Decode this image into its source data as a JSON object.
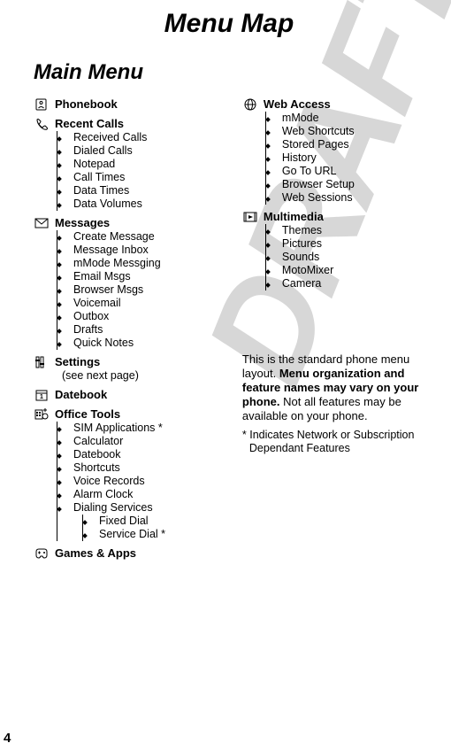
{
  "watermark": "DRAFT",
  "title": "Menu Map",
  "subtitle": "Main Menu",
  "pageNumber": "4",
  "left": [
    {
      "icon": "phonebook",
      "label": "Phonebook",
      "items": []
    },
    {
      "icon": "recent",
      "label": "Recent Calls",
      "items": [
        "Received Calls",
        "Dialed Calls",
        "Notepad",
        "Call Times",
        "Data Times",
        "Data Volumes"
      ]
    },
    {
      "icon": "messages",
      "label": "Messages",
      "items": [
        "Create Message",
        "Message Inbox",
        "mMode Messging",
        "Email Msgs",
        "Browser Msgs",
        "Voicemail",
        "Outbox",
        "Drafts",
        "Quick Notes"
      ]
    },
    {
      "icon": "settings",
      "label": "Settings",
      "helper": "(see next page)",
      "items": []
    },
    {
      "icon": "datebook",
      "label": "Datebook",
      "items": []
    },
    {
      "icon": "office",
      "label": "Office Tools",
      "items": [
        "SIM Applications *",
        "Calculator",
        "Datebook",
        "Shortcuts",
        "Voice Records",
        "Alarm Clock",
        {
          "label": "Dialing Services",
          "sub": [
            "Fixed Dial",
            "Service Dial *"
          ]
        }
      ]
    },
    {
      "icon": "games",
      "label": "Games & Apps",
      "items": []
    }
  ],
  "right": [
    {
      "icon": "web",
      "label": "Web Access",
      "items": [
        "mMode",
        "Web Shortcuts",
        "Stored Pages",
        "History",
        "Go To URL",
        "Browser Setup",
        "Web Sessions"
      ]
    },
    {
      "icon": "multimedia",
      "label": "Multimedia",
      "items": [
        "Themes",
        "Pictures",
        "Sounds",
        "MotoMixer",
        "Camera"
      ]
    }
  ],
  "note": {
    "p1a": "This is the standard phone menu layout. ",
    "p1b": "Menu organization and feature names may vary on your phone.",
    "p1c": " Not all features may be available on your phone.",
    "p2": "* Indicates Network or Subscription Dependant Features"
  }
}
